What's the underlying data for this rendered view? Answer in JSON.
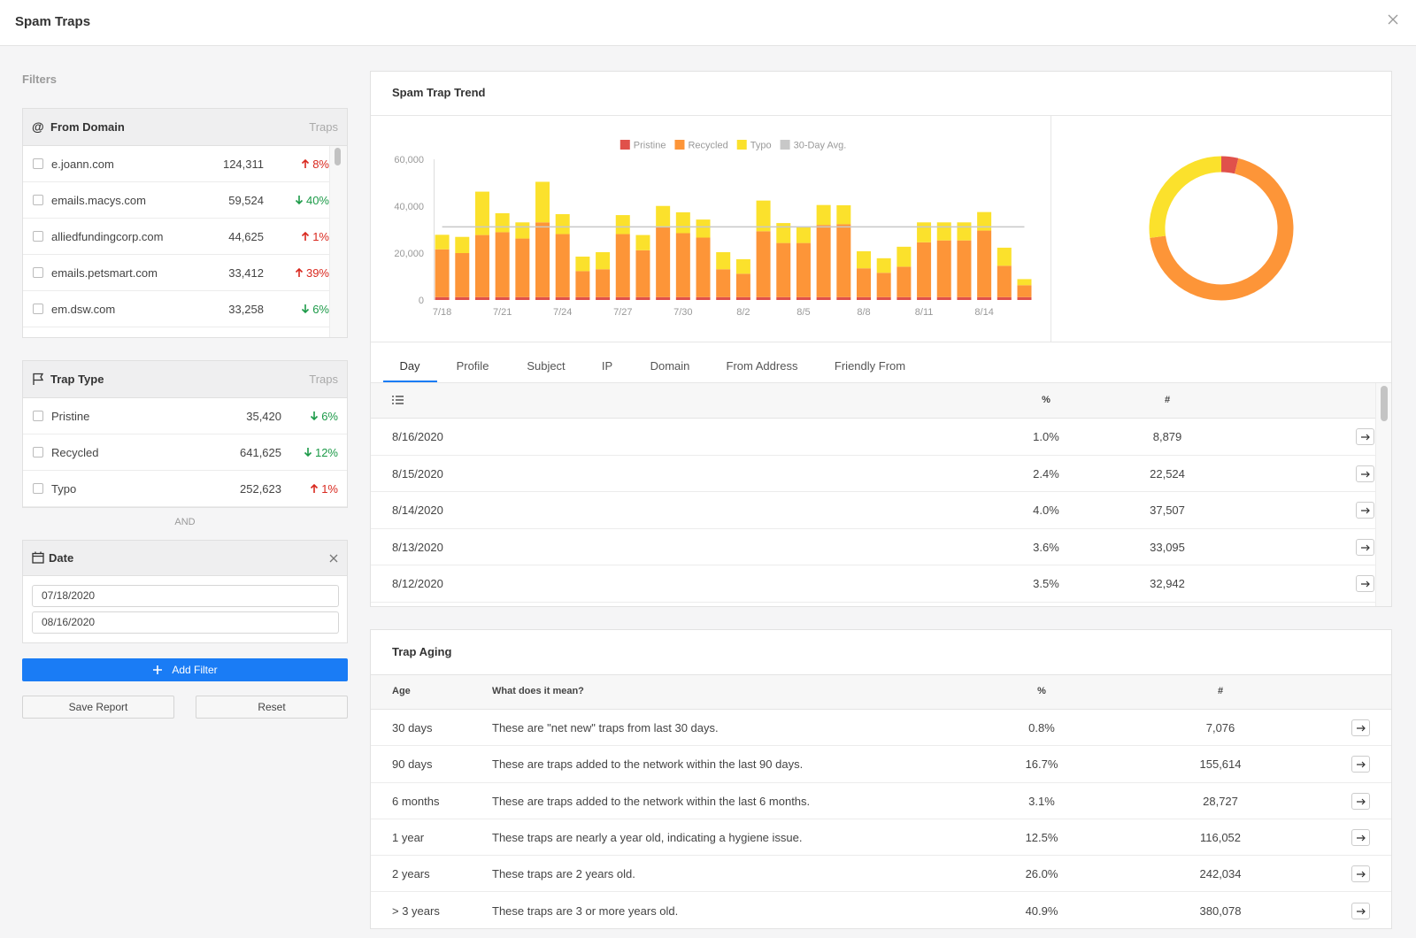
{
  "header": {
    "title": "Spam Traps"
  },
  "filters": {
    "title": "Filters",
    "from_domain": {
      "icon": "@",
      "title": "From Domain",
      "column": "Traps",
      "rows": [
        {
          "name": "e.joann.com",
          "count": "124,311",
          "change": "8%",
          "trend": "up"
        },
        {
          "name": "emails.macys.com",
          "count": "59,524",
          "change": "40%",
          "trend": "down"
        },
        {
          "name": "alliedfundingcorp.com",
          "count": "44,625",
          "change": "1%",
          "trend": "up"
        },
        {
          "name": "emails.petsmart.com",
          "count": "33,412",
          "change": "39%",
          "trend": "up"
        },
        {
          "name": "em.dsw.com",
          "count": "33,258",
          "change": "6%",
          "trend": "down"
        }
      ]
    },
    "trap_type": {
      "title": "Trap Type",
      "column": "Traps",
      "rows": [
        {
          "name": "Pristine",
          "count": "35,420",
          "change": "6%",
          "trend": "down"
        },
        {
          "name": "Recycled",
          "count": "641,625",
          "change": "12%",
          "trend": "down"
        },
        {
          "name": "Typo",
          "count": "252,623",
          "change": "1%",
          "trend": "up"
        }
      ]
    },
    "joiner": "AND",
    "date": {
      "title": "Date",
      "start": "07/18/2020",
      "end": "08/16/2020"
    },
    "add_filter": "Add Filter",
    "save_report": "Save Report",
    "reset": "Reset"
  },
  "trend": {
    "title": "Spam Trap Trend",
    "tabs": [
      "Day",
      "Profile",
      "Subject",
      "IP",
      "Domain",
      "From Address",
      "Friendly From"
    ],
    "active_tab": 0,
    "table": {
      "columns": [
        "%",
        "#"
      ],
      "rows": [
        [
          "8/16/2020",
          "1.0%",
          "8,879"
        ],
        [
          "8/15/2020",
          "2.4%",
          "22,524"
        ],
        [
          "8/14/2020",
          "4.0%",
          "37,507"
        ],
        [
          "8/13/2020",
          "3.6%",
          "33,095"
        ],
        [
          "8/12/2020",
          "3.5%",
          "32,942"
        ]
      ]
    }
  },
  "chart_data": [
    {
      "type": "bar",
      "stacked": true,
      "categories": [
        "7/18",
        null,
        null,
        "7/21",
        null,
        null,
        "7/24",
        null,
        null,
        "7/27",
        null,
        null,
        "7/30",
        null,
        null,
        "8/2",
        null,
        null,
        "8/5",
        null,
        null,
        "8/8",
        null,
        null,
        "8/11",
        null,
        null,
        "8/14",
        null,
        null
      ],
      "series": [
        {
          "name": "Pristine",
          "color": "#e0514b",
          "values": [
            1200,
            1200,
            1200,
            1200,
            1200,
            1200,
            1200,
            1200,
            1200,
            1200,
            1200,
            1200,
            1200,
            1200,
            1200,
            1200,
            1200,
            1200,
            1200,
            1200,
            1200,
            1200,
            1200,
            1200,
            1200,
            1200,
            1200,
            1200,
            1200,
            1200
          ]
        },
        {
          "name": "Recycled",
          "color": "#fd9538",
          "values": [
            20400,
            18800,
            26500,
            27700,
            25000,
            31900,
            26900,
            11100,
            11900,
            26900,
            20000,
            30000,
            27300,
            25400,
            11900,
            10000,
            28100,
            23100,
            23100,
            30800,
            31100,
            12300,
            10400,
            13000,
            23400,
            24200,
            24200,
            28400,
            13400,
            5100
          ]
        },
        {
          "name": "Typo",
          "color": "#fbe12c",
          "values": [
            6200,
            6900,
            18500,
            8100,
            6900,
            17300,
            8500,
            6200,
            7300,
            8100,
            6500,
            8900,
            8900,
            7700,
            7300,
            6200,
            13100,
            8500,
            6900,
            8500,
            8100,
            7300,
            6200,
            8500,
            8500,
            7700,
            7700,
            7900,
            7700,
            2600
          ]
        }
      ],
      "avg_line": {
        "name": "30-Day Avg.",
        "color": "#c8c8c8",
        "value": 31200
      },
      "ylim": [
        0,
        60000
      ],
      "yticks": [
        0,
        {
          "value": 20000,
          "label": "20,000"
        },
        {
          "value": 40000,
          "label": "40,000"
        },
        {
          "value": 60000,
          "label": "60,000"
        }
      ],
      "legend": "top"
    },
    {
      "type": "pie",
      "donut": true,
      "values": [
        35420,
        641625,
        252623
      ],
      "colors": [
        "#e0514b",
        "#fd9538",
        "#fbe12c"
      ]
    }
  ],
  "aging": {
    "title": "Trap Aging",
    "columns": [
      "Age",
      "What does it mean?",
      "%",
      "#"
    ],
    "rows": [
      [
        "30 days",
        "These are \"net new\" traps from last 30 days.",
        "0.8%",
        "7,076"
      ],
      [
        "90 days",
        "These are traps added to the network within the last 90 days.",
        "16.7%",
        "155,614"
      ],
      [
        "6 months",
        "These are traps added to the network within the last 6 months.",
        "3.1%",
        "28,727"
      ],
      [
        "1 year",
        "These traps are nearly a year old, indicating a hygiene issue.",
        "12.5%",
        "116,052"
      ],
      [
        "2 years",
        "These traps are 2 years old.",
        "26.0%",
        "242,034"
      ],
      [
        "> 3 years",
        "These traps are 3 or more years old.",
        "40.9%",
        "380,078"
      ]
    ]
  }
}
